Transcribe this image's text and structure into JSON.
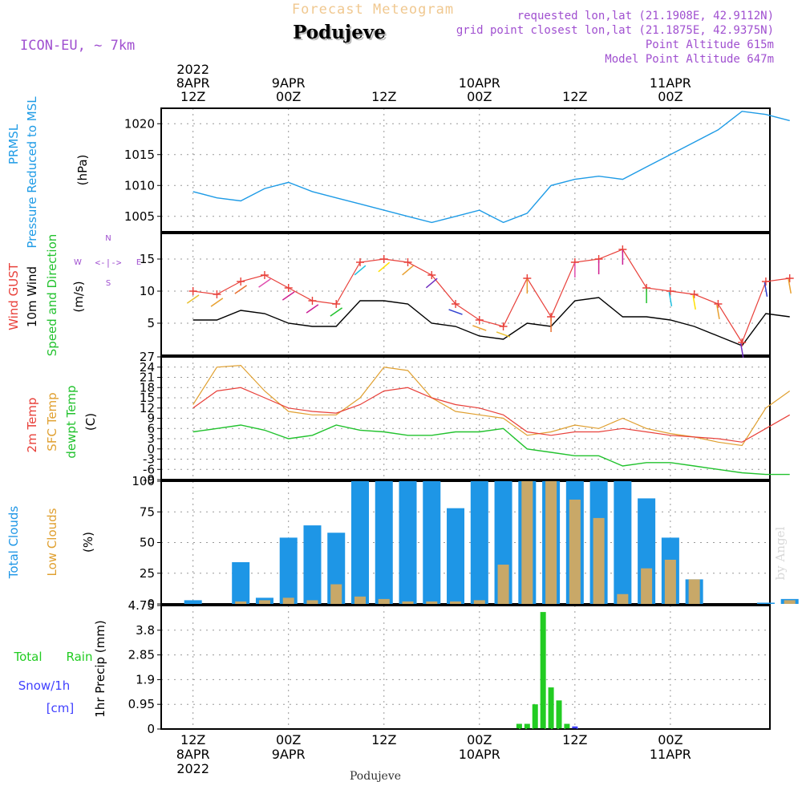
{
  "header": {
    "product": "Forecast Meteogram",
    "location": "Podujeve",
    "model": "ICON-EU, ~ 7km",
    "requested": "requested lon,lat (21.1908E, 42.9112N)",
    "gridpoint": "grid point closest lon,lat (21.1875E, 42.9375N)",
    "point_alt": "Point Altitude 615m",
    "model_alt": "Model Point Altitude 647m",
    "credit": "by Angel",
    "footer": "Podujeve"
  },
  "top_axis": [
    {
      "l1": "2022",
      "l2": "8APR",
      "l3": "12Z"
    },
    {
      "l1": "",
      "l2": "9APR",
      "l3": "00Z"
    },
    {
      "l1": "",
      "l2": "",
      "l3": "12Z"
    },
    {
      "l1": "",
      "l2": "10APR",
      "l3": "00Z"
    },
    {
      "l1": "",
      "l2": "",
      "l3": "12Z"
    },
    {
      "l1": "",
      "l2": "11APR",
      "l3": "00Z"
    }
  ],
  "bottom_axis": [
    {
      "l1": "12Z",
      "l2": "8APR",
      "l3": "2022"
    },
    {
      "l1": "00Z",
      "l2": "9APR",
      "l3": ""
    },
    {
      "l1": "12Z",
      "l2": "",
      "l3": ""
    },
    {
      "l1": "00Z",
      "l2": "10APR",
      "l3": ""
    },
    {
      "l1": "12Z",
      "l2": "",
      "l3": ""
    },
    {
      "l1": "00Z",
      "l2": "11APR",
      "l3": ""
    }
  ],
  "panel_labels": {
    "pressure": {
      "a": "PRMSL",
      "b": "Pressure Reduced to MSL",
      "c": "(hPa)"
    },
    "wind": {
      "a": "Wind GUST",
      "b": "10m Wind",
      "c": "Speed and Direction",
      "d": "(m/s)"
    },
    "compass": {
      "n": "N",
      "s": "S",
      "e": "E",
      "w": "W",
      "arrows": "<-|->"
    },
    "temp": {
      "a": "2m Temp",
      "b": "SFC Temp",
      "c": "dewpt Temp",
      "d": "(C)"
    },
    "clouds": {
      "a": "Total Clouds",
      "b": "Low Clouds",
      "c": "(%)"
    },
    "precip": {
      "a": "Total",
      "b": "Rain",
      "c": "Snow/1h",
      "d": "[cm]",
      "e": "1hr Precip (mm)"
    }
  },
  "colors": {
    "pressure": "#1e9be6",
    "gust": "#e8403a",
    "wind": "#000000",
    "dir": "#22c22e",
    "t2m": "#e8403a",
    "sfc": "#e0a030",
    "dew": "#22c22e",
    "total_cloud": "#1e96e6",
    "low_cloud": "#c8a868",
    "rain": "#22cc22",
    "snow": "#4040ff",
    "violet": "#a050d0",
    "header_orange": "#f0c890"
  },
  "chart_data": [
    {
      "type": "line",
      "name": "pressure",
      "ylabel": "(hPa)",
      "ylim": [
        1002.5,
        1022.5
      ],
      "yticks": [
        1005,
        1010,
        1015,
        1020
      ],
      "x": [
        0,
        3,
        6,
        9,
        12,
        15,
        18,
        21,
        24,
        27,
        30,
        33,
        36,
        39,
        42,
        45,
        48,
        51,
        54,
        57,
        60,
        63,
        66,
        69,
        72,
        75
      ],
      "series": [
        {
          "name": "PRMSL",
          "values": [
            1009.0,
            1008.0,
            1007.5,
            1009.5,
            1010.5,
            1009.0,
            1008.0,
            1007.0,
            1006.0,
            1005.0,
            1004.0,
            1005.0,
            1006.0,
            1004.0,
            1005.5,
            1010.0,
            1011.0,
            1011.5,
            1011.0,
            1013.0,
            1015.0,
            1017.0,
            1019.0,
            1022.0,
            1021.5,
            1020.5
          ]
        }
      ]
    },
    {
      "type": "line",
      "name": "wind",
      "ylabel": "(m/s)",
      "ylim": [
        0,
        19
      ],
      "yticks": [
        5,
        10,
        15
      ],
      "x": [
        0,
        3,
        6,
        9,
        12,
        15,
        18,
        21,
        24,
        27,
        30,
        33,
        36,
        39,
        42,
        45,
        48,
        51,
        54,
        57,
        60,
        63,
        66,
        69,
        72,
        75
      ],
      "series": [
        {
          "name": "Wind GUST",
          "values": [
            10.0,
            9.5,
            11.5,
            12.5,
            10.5,
            8.5,
            8.0,
            14.5,
            15.0,
            14.5,
            12.5,
            8.0,
            5.5,
            4.5,
            12.0,
            6.0,
            14.5,
            15.0,
            16.5,
            10.5,
            10.0,
            9.5,
            8.0,
            2.0,
            11.5,
            12.0
          ]
        },
        {
          "name": "10m Wind",
          "values": [
            5.5,
            5.5,
            7.0,
            6.5,
            5.0,
            4.5,
            4.5,
            8.5,
            8.5,
            8.0,
            5.0,
            4.5,
            3.0,
            2.5,
            5.0,
            4.5,
            8.5,
            9.0,
            6.0,
            6.0,
            5.5,
            4.5,
            3.0,
            1.5,
            6.5,
            6.0
          ]
        }
      ]
    },
    {
      "type": "line",
      "name": "temperature",
      "ylabel": "(C)",
      "ylim": [
        -9,
        27
      ],
      "yticks": [
        -9,
        -6,
        -3,
        0,
        3,
        6,
        9,
        12,
        15,
        18,
        21,
        24,
        27
      ],
      "x": [
        0,
        3,
        6,
        9,
        12,
        15,
        18,
        21,
        24,
        27,
        30,
        33,
        36,
        39,
        42,
        45,
        48,
        51,
        54,
        57,
        60,
        63,
        66,
        69,
        72,
        75
      ],
      "series": [
        {
          "name": "2m Temp",
          "values": [
            12.0,
            17.0,
            18.0,
            15.0,
            12.0,
            11.0,
            10.5,
            13.0,
            17.0,
            18.0,
            15.0,
            13.0,
            12.0,
            10.0,
            5.0,
            4.0,
            5.0,
            5.0,
            6.0,
            5.0,
            4.0,
            3.5,
            3.0,
            2.0,
            6.0,
            10.0
          ]
        },
        {
          "name": "SFC Temp",
          "values": [
            13.0,
            24.0,
            24.5,
            17.0,
            11.0,
            10.0,
            10.0,
            15.0,
            24.0,
            23.0,
            15.0,
            11.0,
            10.0,
            9.0,
            4.0,
            5.0,
            7.0,
            6.0,
            9.0,
            6.0,
            4.5,
            3.5,
            2.0,
            1.0,
            12.0,
            17.0
          ]
        },
        {
          "name": "dewpt Temp",
          "values": [
            5.0,
            6.0,
            7.0,
            5.5,
            3.0,
            4.0,
            7.0,
            5.5,
            5.0,
            4.0,
            4.0,
            5.0,
            5.0,
            6.0,
            0.0,
            -1.0,
            -2.0,
            -2.0,
            -5.0,
            -4.0,
            -4.0,
            -5.0,
            -6.0,
            -7.0,
            -7.5,
            -7.5
          ]
        }
      ]
    },
    {
      "type": "bar",
      "name": "clouds",
      "ylabel": "(%)",
      "ylim": [
        0,
        100
      ],
      "yticks": [
        0,
        25,
        50,
        75,
        100
      ],
      "x": [
        0,
        3,
        6,
        9,
        12,
        15,
        18,
        21,
        24,
        27,
        30,
        33,
        36,
        39,
        42,
        45,
        48,
        51,
        54,
        57,
        60,
        63,
        66,
        69,
        72,
        75
      ],
      "series": [
        {
          "name": "Total Clouds",
          "values": [
            3,
            0,
            34,
            5,
            54,
            64,
            58,
            100,
            100,
            100,
            100,
            78,
            100,
            100,
            100,
            100,
            100,
            100,
            100,
            86,
            54,
            20,
            0,
            0,
            1,
            4
          ]
        },
        {
          "name": "Low Clouds",
          "values": [
            0,
            0,
            2,
            3,
            5,
            3,
            16,
            6,
            4,
            2,
            2,
            2,
            3,
            32,
            100,
            100,
            85,
            70,
            8,
            29,
            36,
            20,
            0,
            0,
            0,
            3
          ]
        }
      ]
    },
    {
      "type": "bar",
      "name": "precip",
      "ylabel": "1hr Precip (mm)",
      "ylim": [
        0,
        4.75
      ],
      "yticks": [
        0,
        0.95,
        1.9,
        2.85,
        3.8,
        4.75
      ],
      "x": [
        41,
        42,
        43,
        44,
        45,
        46,
        47,
        48
      ],
      "series": [
        {
          "name": "Total Rain",
          "values": [
            0.2,
            0.2,
            0.95,
            4.5,
            1.6,
            1.1,
            0.2,
            0.0
          ]
        },
        {
          "name": "Snow/1h",
          "values": [
            0,
            0,
            0,
            0,
            0,
            0,
            0,
            0.1
          ]
        }
      ]
    }
  ]
}
